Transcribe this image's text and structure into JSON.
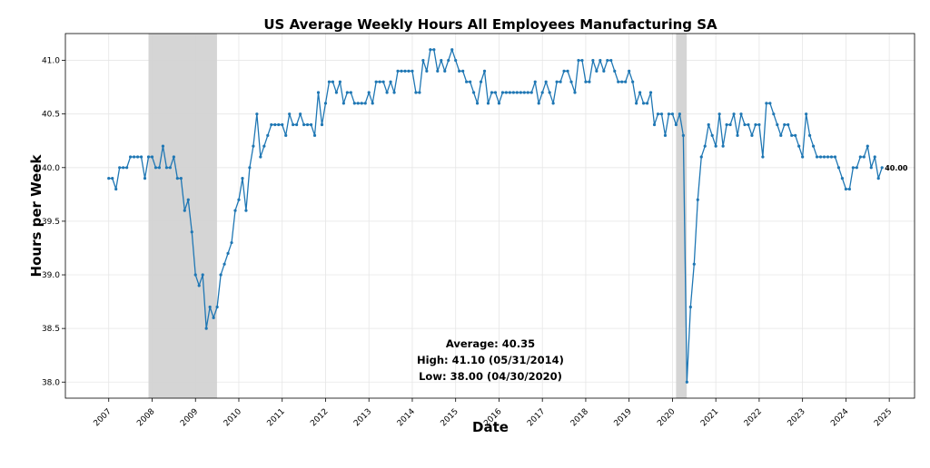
{
  "chart_data": {
    "type": "line",
    "title": "US Average Weekly Hours All Employees Manufacturing SA",
    "xlabel": "Date",
    "ylabel": "Hours per Week",
    "ylim": [
      37.85,
      41.25
    ],
    "xlim": [
      "2006-01-01",
      "2025-08-01"
    ],
    "yticks": [
      "38.0",
      "38.5",
      "39.0",
      "39.5",
      "40.0",
      "40.5",
      "41.0"
    ],
    "xticks": [
      "2007",
      "2008",
      "2009",
      "2010",
      "2011",
      "2012",
      "2013",
      "2014",
      "2015",
      "2016",
      "2017",
      "2018",
      "2019",
      "2020",
      "2021",
      "2022",
      "2023",
      "2024",
      "2025"
    ],
    "grid": true,
    "series": [
      {
        "start": "2007-01",
        "values": [
          39.9,
          39.9,
          39.8,
          40.0,
          40.0,
          40.0,
          40.1,
          40.1,
          40.1,
          40.1,
          39.9,
          40.1,
          40.1,
          40.0,
          40.0,
          40.2,
          40.0,
          40.0,
          40.1,
          39.9,
          39.9,
          39.6,
          39.7,
          39.4,
          39.0,
          38.9,
          39.0,
          38.5,
          38.7,
          38.6,
          38.7,
          39.0,
          39.1,
          39.2,
          39.3,
          39.6,
          39.7,
          39.9,
          39.6,
          40.0,
          40.2,
          40.5,
          40.1,
          40.2,
          40.3,
          40.4,
          40.4,
          40.4,
          40.4,
          40.3,
          40.5,
          40.4,
          40.4,
          40.5,
          40.4,
          40.4,
          40.4,
          40.3,
          40.7,
          40.4,
          40.6,
          40.8,
          40.8,
          40.7,
          40.8,
          40.6,
          40.7,
          40.7,
          40.6,
          40.6,
          40.6,
          40.6,
          40.7,
          40.6,
          40.8,
          40.8,
          40.8,
          40.7,
          40.8,
          40.7,
          40.9,
          40.9,
          40.9,
          40.9,
          40.9,
          40.7,
          40.7,
          41.0,
          40.9,
          41.1,
          41.1,
          40.9,
          41.0,
          40.9,
          41.0,
          41.1,
          41.0,
          40.9,
          40.9,
          40.8,
          40.8,
          40.7,
          40.6,
          40.8,
          40.9,
          40.6,
          40.7,
          40.7,
          40.6,
          40.7,
          40.7,
          40.7,
          40.7,
          40.7,
          40.7,
          40.7,
          40.7,
          40.7,
          40.8,
          40.6,
          40.7,
          40.8,
          40.7,
          40.6,
          40.8,
          40.8,
          40.9,
          40.9,
          40.8,
          40.7,
          41.0,
          41.0,
          40.8,
          40.8,
          41.0,
          40.9,
          41.0,
          40.9,
          41.0,
          41.0,
          40.9,
          40.8,
          40.8,
          40.8,
          40.9,
          40.8,
          40.6,
          40.7,
          40.6,
          40.6,
          40.7,
          40.4,
          40.5,
          40.5,
          40.3,
          40.5,
          40.5,
          40.4,
          40.5,
          40.3,
          38.0,
          38.7,
          39.1,
          39.7,
          40.1,
          40.2,
          40.4,
          40.3,
          40.2,
          40.5,
          40.2,
          40.4,
          40.4,
          40.5,
          40.3,
          40.5,
          40.4,
          40.4,
          40.3,
          40.4,
          40.4,
          40.1,
          40.6,
          40.6,
          40.5,
          40.4,
          40.3,
          40.4,
          40.4,
          40.3,
          40.3,
          40.2,
          40.1,
          40.5,
          40.3,
          40.2,
          40.1,
          40.1,
          40.1,
          40.1,
          40.1,
          40.1,
          40.0,
          39.9,
          39.8,
          39.8,
          40.0,
          40.0,
          40.1,
          40.1,
          40.2,
          40.0,
          40.1,
          39.9,
          40.0
        ]
      }
    ],
    "recessions": [
      {
        "start": "2007-12-01",
        "end": "2009-06-30"
      },
      {
        "start": "2020-02-01",
        "end": "2020-04-30"
      }
    ],
    "annotations": {
      "average": "Average: 40.35",
      "high": "High: 41.10 (05/31/2014)",
      "low": "Low: 38.00 (04/30/2020)",
      "last_value": "40.00"
    },
    "colors": {
      "line": "#1f77b4",
      "recession": "#d3d3d3",
      "grid": "#e6e6e6"
    }
  }
}
